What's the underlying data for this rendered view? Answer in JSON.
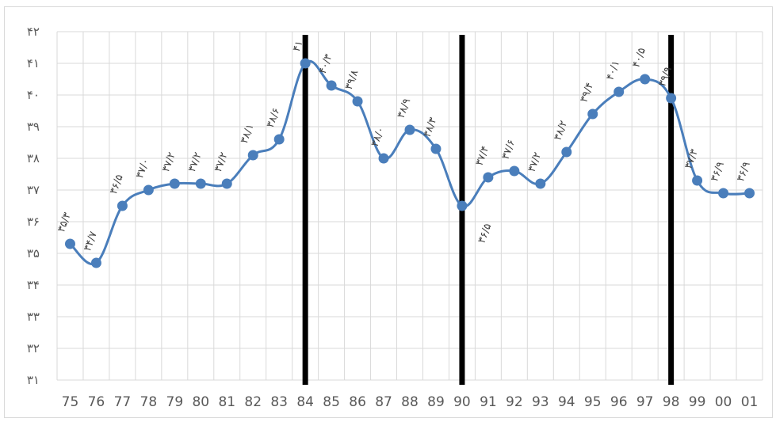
{
  "chart_data": {
    "type": "line",
    "title": "",
    "xlabel": "",
    "ylabel": "",
    "categories": [
      "75",
      "76",
      "77",
      "78",
      "79",
      "80",
      "81",
      "82",
      "83",
      "84",
      "85",
      "86",
      "87",
      "88",
      "89",
      "90",
      "91",
      "92",
      "93",
      "94",
      "95",
      "96",
      "97",
      "98",
      "99",
      "00",
      "01"
    ],
    "series": [
      {
        "color": "#4a7ebb",
        "values": [
          35.3,
          34.7,
          36.5,
          37.0,
          37.2,
          37.2,
          37.2,
          38.1,
          38.6,
          41.0,
          40.3,
          39.8,
          38.0,
          38.9,
          38.3,
          36.5,
          37.4,
          37.6,
          37.2,
          38.2,
          39.4,
          40.1,
          40.5,
          39.9,
          37.3,
          36.9,
          36.9
        ]
      }
    ],
    "data_labels": [
      "۳۵/۳",
      "۳۴/۷",
      "۳۶/۵",
      "۳۷/۰",
      "۳۷/۲",
      "۳۷/۲",
      "۳۷/۲",
      "۳۸/۱",
      "۳۸/۶",
      "۴۱",
      "۴۰/۳",
      "۳۹/۸",
      "۳۸/۰",
      "۳۸/۹",
      "۳۸/۳",
      "۳۶/۵",
      "۳۷/۴",
      "۳۷/۶",
      "۳۷/۲",
      "۳۸/۲",
      "۳۹/۴",
      "۴۰/۱",
      "۴۰/۵",
      "۳۹/۹",
      "۳۷/۳",
      "۳۶/۹",
      "۳۶/۹"
    ],
    "y_ticks": [
      {
        "value": 31,
        "label": "۳۱"
      },
      {
        "value": 32,
        "label": "۳۲"
      },
      {
        "value": 33,
        "label": "۳۳"
      },
      {
        "value": 34,
        "label": "۳۴"
      },
      {
        "value": 35,
        "label": "۳۵"
      },
      {
        "value": 36,
        "label": "۳۶"
      },
      {
        "value": 37,
        "label": "۳۷"
      },
      {
        "value": 38,
        "label": "۳۸"
      },
      {
        "value": 39,
        "label": "۳۹"
      },
      {
        "value": 40,
        "label": "۴۰"
      },
      {
        "value": 41,
        "label": "۴۱"
      },
      {
        "value": 42,
        "label": "۴۲"
      }
    ],
    "ylim": [
      31,
      42
    ],
    "grid": true,
    "legend": "none",
    "vertical_markers": [
      "84",
      "90",
      "98"
    ],
    "marker_color": "#000000",
    "grid_color": "#d9d9d9"
  }
}
